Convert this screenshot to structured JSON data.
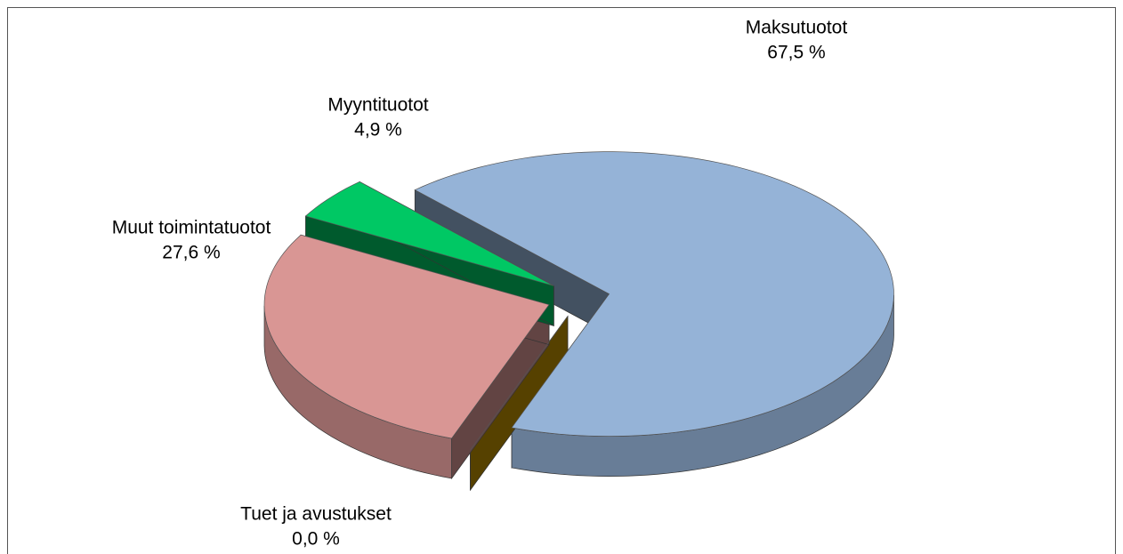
{
  "chart_data": {
    "type": "pie",
    "categories": [
      "Maksutuotot",
      "Tuet ja avustukset",
      "Muut toimintatuotot",
      "Myyntituotot"
    ],
    "values": [
      67.5,
      0.0,
      27.6,
      4.9
    ],
    "value_labels": [
      "67,5 %",
      "0,0 %",
      "27,6 %",
      "4,9 %"
    ],
    "colors": [
      "#95b3d7",
      "#c09000",
      "#d99694",
      "#00c864"
    ]
  }
}
